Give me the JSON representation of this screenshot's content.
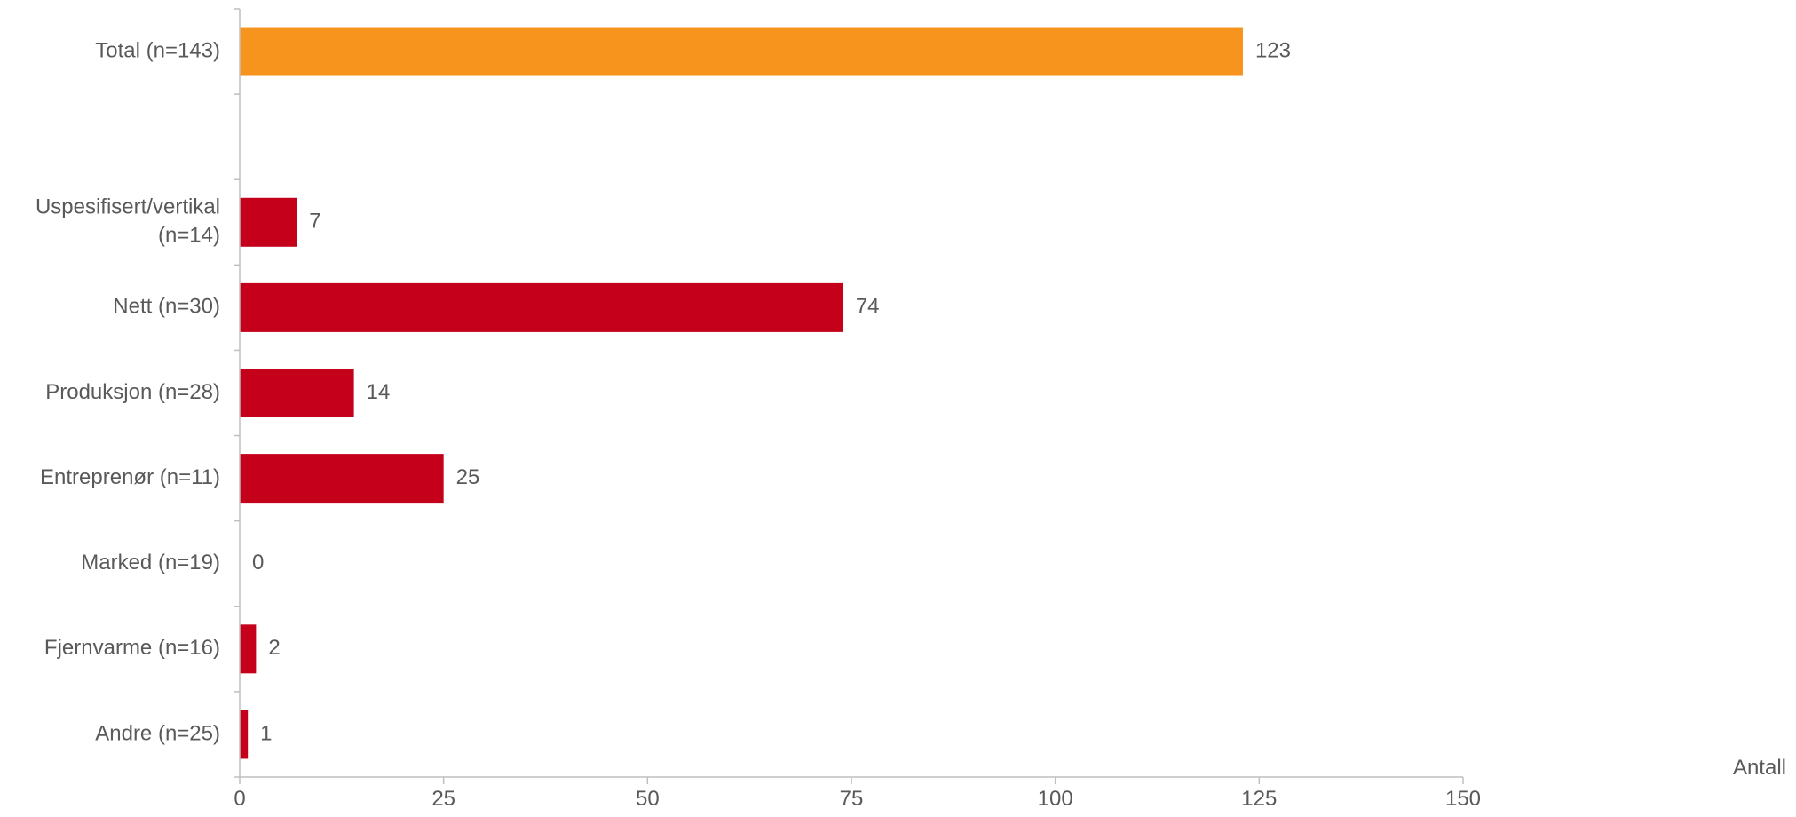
{
  "chart_data": {
    "type": "bar",
    "orientation": "horizontal",
    "categories": [
      "Total (n=143)",
      "",
      "Uspesifisert/vertikal (n=14)",
      "Nett (n=30)",
      "Produksjon (n=28)",
      "Entreprenør (n=11)",
      "Marked (n=19)",
      "Fjernvarme (n=16)",
      "Andre (n=25)"
    ],
    "category_lines": [
      [
        "Total (n=143)"
      ],
      [],
      [
        "Uspesifisert/vertikal",
        "(n=14)"
      ],
      [
        "Nett (n=30)"
      ],
      [
        "Produksjon (n=28)"
      ],
      [
        "Entreprenør (n=11)"
      ],
      [
        "Marked (n=19)"
      ],
      [
        "Fjernvarme (n=16)"
      ],
      [
        "Andre (n=25)"
      ]
    ],
    "values": [
      123,
      null,
      7,
      74,
      14,
      25,
      0,
      2,
      1
    ],
    "data_labels": [
      "123",
      "",
      "7",
      "74",
      "14",
      "25",
      "0",
      "2",
      "1"
    ],
    "bar_colors": [
      "#F7941D",
      null,
      "#C4001A",
      "#C4001A",
      "#C4001A",
      "#C4001A",
      "#C4001A",
      "#C4001A",
      "#C4001A"
    ],
    "xlabel": "Antall",
    "xlim": [
      0,
      150
    ],
    "xticks": [
      0,
      25,
      50,
      75,
      100,
      125,
      150
    ],
    "xtick_labels": [
      "0",
      "25",
      "50",
      "75",
      "100",
      "125",
      "150"
    ],
    "grid": false,
    "axis_color": "#BFBFBF",
    "text_color": "#595959"
  }
}
